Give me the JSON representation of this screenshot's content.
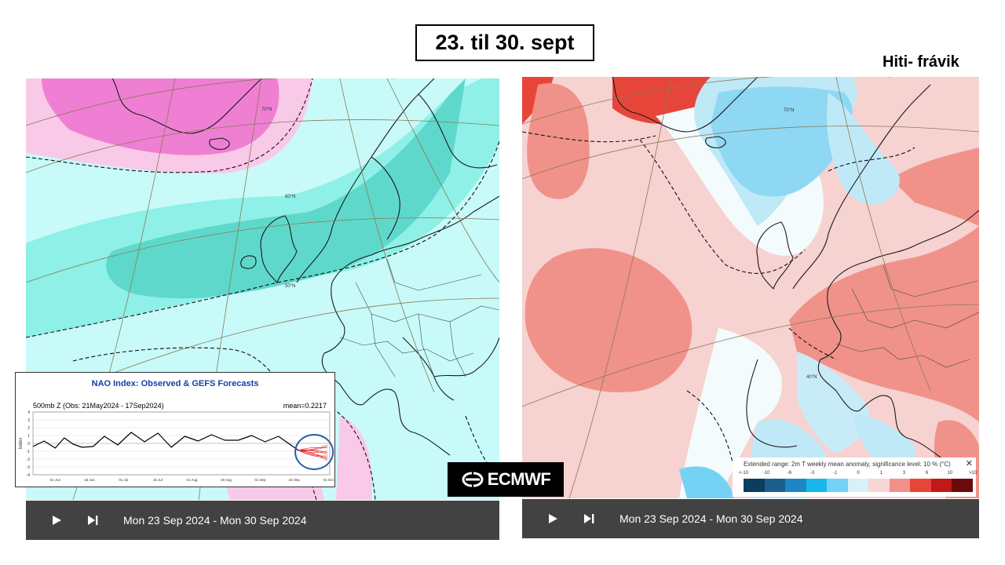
{
  "header": {
    "title": "23. til 30. sept",
    "right_label": "Hiti- frávik"
  },
  "left_map": {
    "player": {
      "date_range": "Mon 23 Sep 2024 - Mon 30 Sep 2024"
    },
    "lat_labels": [
      "70°N",
      "60°N",
      "50°N"
    ]
  },
  "right_map": {
    "player": {
      "date_range": "Mon 23 Sep 2024 - Mon 30 Sep 2024"
    },
    "lat_labels": [
      "70°N",
      "40°N"
    ],
    "legend": {
      "title": "Extended range: 2m T weekly mean anomaly, significance level: 10 % (°C)",
      "close": "✕",
      "ticks": [
        "<-10",
        "-10",
        "-6",
        "-3",
        "-1",
        "0",
        "1",
        "3",
        "6",
        "10",
        ">10"
      ],
      "colors": [
        "#0b3d5c",
        "#1b5f8f",
        "#1f86c4",
        "#18b8ec",
        "#74d2f4",
        "#d8f0f8",
        "#f7d6d4",
        "#f0928a",
        "#e8453a",
        "#c21818",
        "#6b0a0a"
      ]
    }
  },
  "nao_inset": {
    "title": "NAO Index: Observed & GEFS Forecasts",
    "subtitle": "500mb Z (Obs: 21May2024 - 17Sep2024)",
    "mean": "mean=0.2217",
    "chart_data": {
      "type": "line",
      "ylabel": "Index",
      "ylim": [
        -4,
        4
      ],
      "yticks": [
        "4",
        "3",
        "2",
        "1",
        "0",
        "-1",
        "-2",
        "-3",
        "-4"
      ],
      "xticks": [
        "01 Jun",
        "15 Jun",
        "01 Jul",
        "15 Jul",
        "01 Aug",
        "15 Aug",
        "01 Sep",
        "15 Sep",
        "01 Oct"
      ],
      "observed": {
        "x": [
          0,
          5,
          10,
          14,
          18,
          22,
          27,
          32,
          38,
          44,
          50,
          56,
          62,
          68,
          74,
          80,
          86,
          92,
          98,
          104,
          110,
          116,
          119
        ],
        "y": [
          -0.4,
          0.3,
          -0.6,
          0.7,
          -0.1,
          -0.5,
          -0.4,
          0.9,
          -0.2,
          1.4,
          0.2,
          1.3,
          -0.5,
          0.9,
          0.3,
          1.1,
          0.4,
          0.4,
          1.0,
          0.2,
          0.9,
          -0.3,
          -0.9
        ]
      },
      "forecast_color": "#e02020"
    }
  },
  "brand": {
    "logo_text": "ECMWF"
  }
}
